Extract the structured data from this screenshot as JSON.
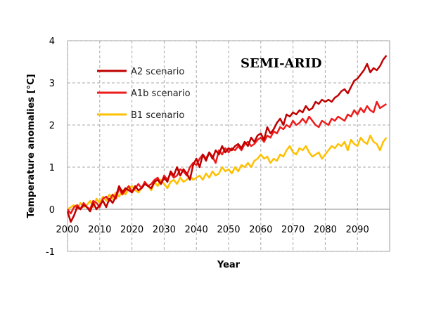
{
  "chart_data": {
    "type": "line",
    "title": "SEMI-ARID",
    "xlabel": "Year",
    "ylabel": "Temperature anomalies [°C]",
    "xlim": [
      2000,
      2100
    ],
    "ylim": [
      -1,
      4
    ],
    "x_ticks": [
      2000,
      2010,
      2020,
      2030,
      2040,
      2050,
      2060,
      2070,
      2080,
      2090
    ],
    "y_ticks": [
      -1,
      0,
      1,
      2,
      3,
      4
    ],
    "grid": true,
    "legend_position": "top-left",
    "x": [
      2000,
      2001,
      2002,
      2003,
      2004,
      2005,
      2006,
      2007,
      2008,
      2009,
      2010,
      2011,
      2012,
      2013,
      2014,
      2015,
      2016,
      2017,
      2018,
      2019,
      2020,
      2021,
      2022,
      2023,
      2024,
      2025,
      2026,
      2027,
      2028,
      2029,
      2030,
      2031,
      2032,
      2033,
      2034,
      2035,
      2036,
      2037,
      2038,
      2039,
      2040,
      2041,
      2042,
      2043,
      2044,
      2045,
      2046,
      2047,
      2048,
      2049,
      2050,
      2051,
      2052,
      2053,
      2054,
      2055,
      2056,
      2057,
      2058,
      2059,
      2060,
      2061,
      2062,
      2063,
      2064,
      2065,
      2066,
      2067,
      2068,
      2069,
      2070,
      2071,
      2072,
      2073,
      2074,
      2075,
      2076,
      2077,
      2078,
      2079,
      2080,
      2081,
      2082,
      2083,
      2084,
      2085,
      2086,
      2087,
      2088,
      2089,
      2090,
      2091,
      2092,
      2093,
      2094,
      2095,
      2096,
      2097,
      2098,
      2099
    ],
    "series": [
      {
        "name": "A2 scenario",
        "color": "#c00000",
        "values": [
          -0.05,
          -0.3,
          -0.15,
          0.05,
          0.0,
          0.1,
          0.05,
          -0.05,
          0.15,
          0.0,
          0.1,
          0.2,
          0.05,
          0.25,
          0.15,
          0.3,
          0.55,
          0.4,
          0.5,
          0.45,
          0.4,
          0.55,
          0.45,
          0.5,
          0.6,
          0.55,
          0.5,
          0.65,
          0.7,
          0.6,
          0.75,
          0.65,
          0.9,
          0.8,
          1.0,
          0.8,
          0.95,
          0.85,
          0.7,
          1.05,
          1.2,
          1.0,
          1.3,
          1.15,
          1.35,
          1.2,
          1.4,
          1.3,
          1.5,
          1.35,
          1.45,
          1.4,
          1.5,
          1.55,
          1.45,
          1.6,
          1.5,
          1.7,
          1.6,
          1.75,
          1.8,
          1.65,
          1.95,
          1.8,
          1.9,
          2.05,
          2.15,
          2.0,
          2.25,
          2.2,
          2.3,
          2.25,
          2.35,
          2.3,
          2.45,
          2.35,
          2.4,
          2.55,
          2.5,
          2.6,
          2.55,
          2.6,
          2.55,
          2.65,
          2.7,
          2.8,
          2.85,
          2.75,
          2.9,
          3.05,
          3.1,
          3.2,
          3.3,
          3.45,
          3.25,
          3.35,
          3.3,
          3.4,
          3.55,
          3.65
        ]
      },
      {
        "name": "A1b scenario",
        "color": "#ee1c1c",
        "values": [
          0.0,
          -0.1,
          0.05,
          0.1,
          0.0,
          0.15,
          0.05,
          0.0,
          0.2,
          0.15,
          0.05,
          0.25,
          0.3,
          0.2,
          0.35,
          0.25,
          0.5,
          0.35,
          0.45,
          0.55,
          0.4,
          0.5,
          0.6,
          0.5,
          0.65,
          0.55,
          0.6,
          0.7,
          0.75,
          0.6,
          0.8,
          0.7,
          0.85,
          0.75,
          0.8,
          0.95,
          0.9,
          0.8,
          1.0,
          1.1,
          1.05,
          1.2,
          1.3,
          1.2,
          1.35,
          1.25,
          1.1,
          1.4,
          1.3,
          1.45,
          1.35,
          1.45,
          1.4,
          1.5,
          1.4,
          1.55,
          1.6,
          1.5,
          1.55,
          1.65,
          1.7,
          1.6,
          1.75,
          1.7,
          1.85,
          1.8,
          1.95,
          1.9,
          2.0,
          1.95,
          2.1,
          2.0,
          2.05,
          2.15,
          2.05,
          2.2,
          2.1,
          2.0,
          1.95,
          2.1,
          2.05,
          2.0,
          2.15,
          2.1,
          2.2,
          2.15,
          2.1,
          2.25,
          2.2,
          2.35,
          2.25,
          2.4,
          2.3,
          2.45,
          2.35,
          2.3,
          2.55,
          2.4,
          2.45,
          2.5
        ]
      },
      {
        "name": "B1 scenario",
        "color": "#ffc000",
        "values": [
          0.0,
          0.05,
          0.1,
          0.0,
          0.15,
          0.05,
          0.1,
          0.2,
          0.05,
          0.25,
          0.15,
          0.3,
          0.2,
          0.35,
          0.25,
          0.4,
          0.3,
          0.45,
          0.35,
          0.5,
          0.55,
          0.45,
          0.4,
          0.5,
          0.6,
          0.55,
          0.45,
          0.65,
          0.55,
          0.7,
          0.6,
          0.5,
          0.65,
          0.7,
          0.6,
          0.75,
          0.65,
          0.7,
          0.8,
          0.7,
          0.75,
          0.8,
          0.7,
          0.85,
          0.75,
          0.9,
          0.8,
          0.85,
          1.0,
          0.9,
          0.95,
          0.85,
          1.0,
          0.9,
          1.05,
          1.0,
          1.1,
          1.0,
          1.15,
          1.2,
          1.3,
          1.2,
          1.25,
          1.1,
          1.2,
          1.15,
          1.3,
          1.25,
          1.4,
          1.5,
          1.35,
          1.3,
          1.45,
          1.4,
          1.5,
          1.35,
          1.25,
          1.3,
          1.35,
          1.2,
          1.3,
          1.4,
          1.5,
          1.45,
          1.55,
          1.5,
          1.6,
          1.4,
          1.65,
          1.55,
          1.5,
          1.7,
          1.6,
          1.55,
          1.75,
          1.6,
          1.55,
          1.4,
          1.6,
          1.7
        ]
      }
    ]
  }
}
